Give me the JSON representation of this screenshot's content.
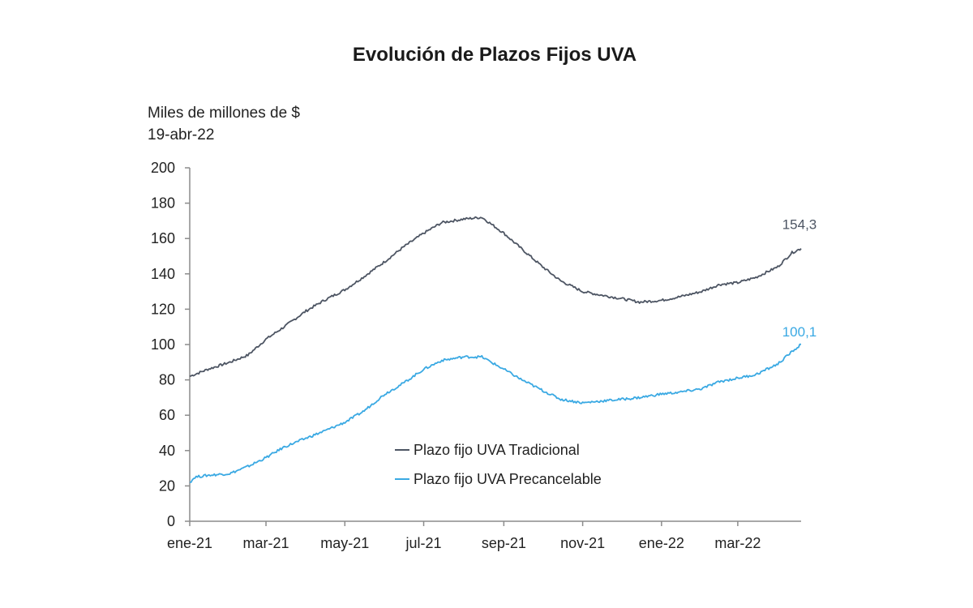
{
  "chart_data": {
    "type": "line",
    "title": "Evolución de Plazos Fijos UVA",
    "unit_label": "Miles de millones de $",
    "date_label": "19-abr-22",
    "ylim": [
      0,
      200
    ],
    "yticks": [
      "0",
      "20",
      "40",
      "60",
      "80",
      "100",
      "120",
      "140",
      "160",
      "180",
      "200"
    ],
    "xticks": [
      "ene-21",
      "mar-21",
      "may-21",
      "jul-21",
      "sep-21",
      "nov-21",
      "ene-22",
      "mar-22"
    ],
    "x_tick_dates": [
      "2021-01-01",
      "2021-03-01",
      "2021-05-01",
      "2021-07-01",
      "2021-09-01",
      "2021-11-01",
      "2022-01-01",
      "2022-03-01"
    ],
    "xlim": [
      "2021-01-01",
      "2022-04-19"
    ],
    "grid": false,
    "legend_position": "center-bottom",
    "series": [
      {
        "name": "Plazo fijo UVA Tradicional",
        "color": "#4d5563",
        "end_label": "154,3",
        "points": [
          [
            "2021-01-01",
            82
          ],
          [
            "2021-01-15",
            86
          ],
          [
            "2021-02-01",
            90
          ],
          [
            "2021-02-15",
            94
          ],
          [
            "2021-03-01",
            103
          ],
          [
            "2021-03-15",
            110
          ],
          [
            "2021-04-01",
            119
          ],
          [
            "2021-04-15",
            125
          ],
          [
            "2021-05-01",
            131
          ],
          [
            "2021-05-15",
            138
          ],
          [
            "2021-06-01",
            147
          ],
          [
            "2021-06-15",
            155
          ],
          [
            "2021-07-01",
            163
          ],
          [
            "2021-07-15",
            169
          ],
          [
            "2021-08-01",
            171
          ],
          [
            "2021-08-15",
            172
          ],
          [
            "2021-09-01",
            163
          ],
          [
            "2021-09-15",
            154
          ],
          [
            "2021-10-01",
            144
          ],
          [
            "2021-10-15",
            136
          ],
          [
            "2021-11-01",
            130
          ],
          [
            "2021-11-15",
            128
          ],
          [
            "2021-12-01",
            126
          ],
          [
            "2021-12-15",
            124
          ],
          [
            "2022-01-01",
            125
          ],
          [
            "2022-01-15",
            127
          ],
          [
            "2022-02-01",
            130
          ],
          [
            "2022-02-15",
            134
          ],
          [
            "2022-03-01",
            135
          ],
          [
            "2022-03-15",
            138
          ],
          [
            "2022-04-01",
            144
          ],
          [
            "2022-04-12",
            152
          ],
          [
            "2022-04-19",
            154.3
          ]
        ]
      },
      {
        "name": "Plazo fijo UVA Precancelable",
        "color": "#3aa9e3",
        "end_label": "100,1",
        "points": [
          [
            "2021-01-01",
            22
          ],
          [
            "2021-01-05",
            25
          ],
          [
            "2021-01-15",
            26
          ],
          [
            "2021-02-01",
            27
          ],
          [
            "2021-02-15",
            31
          ],
          [
            "2021-03-01",
            36
          ],
          [
            "2021-03-15",
            42
          ],
          [
            "2021-04-01",
            47
          ],
          [
            "2021-04-15",
            51
          ],
          [
            "2021-05-01",
            56
          ],
          [
            "2021-05-15",
            62
          ],
          [
            "2021-06-01",
            72
          ],
          [
            "2021-06-15",
            78
          ],
          [
            "2021-07-01",
            86
          ],
          [
            "2021-07-15",
            91
          ],
          [
            "2021-08-01",
            93
          ],
          [
            "2021-08-15",
            93
          ],
          [
            "2021-09-01",
            86
          ],
          [
            "2021-09-15",
            80
          ],
          [
            "2021-10-01",
            74
          ],
          [
            "2021-10-15",
            69
          ],
          [
            "2021-11-01",
            67
          ],
          [
            "2021-11-15",
            68
          ],
          [
            "2021-12-01",
            69
          ],
          [
            "2021-12-15",
            70
          ],
          [
            "2022-01-01",
            72
          ],
          [
            "2022-01-15",
            73
          ],
          [
            "2022-02-01",
            75
          ],
          [
            "2022-02-15",
            79
          ],
          [
            "2022-03-01",
            81
          ],
          [
            "2022-03-15",
            83
          ],
          [
            "2022-04-01",
            89
          ],
          [
            "2022-04-12",
            96
          ],
          [
            "2022-04-19",
            100.1
          ]
        ]
      }
    ]
  }
}
